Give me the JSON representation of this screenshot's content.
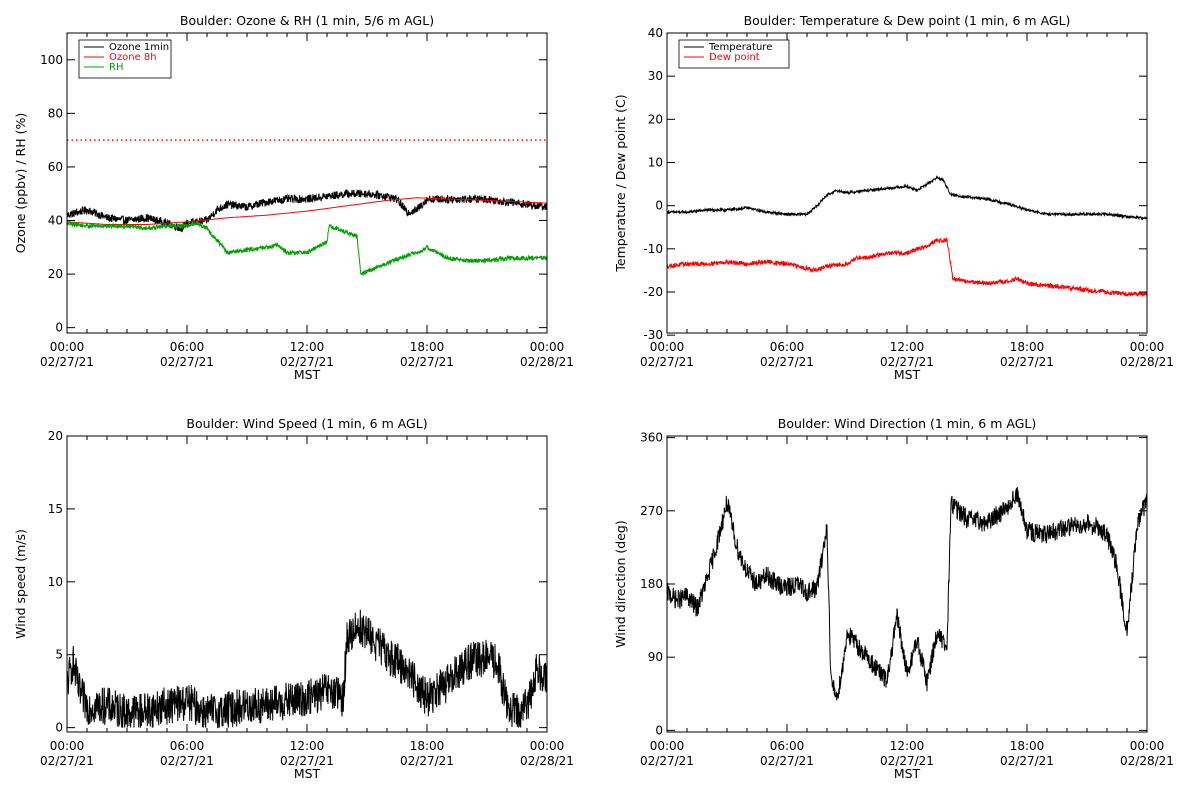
{
  "chart_data": [
    {
      "type": "line",
      "title": "Boulder: Ozone & RH (1 min, 5/6 m AGL)",
      "xlabel": "MST",
      "ylabel": "Ozone (ppbv) / RH (%)",
      "xlim": [
        0,
        24
      ],
      "ylim": [
        -2,
        110
      ],
      "yticks": [
        0,
        20,
        40,
        60,
        80,
        100
      ],
      "xticks_time": [
        "00:00",
        "06:00",
        "12:00",
        "18:00",
        "00:00"
      ],
      "xticks_date": [
        "02/27/21",
        "02/27/21",
        "02/27/21",
        "02/27/21",
        "02/28/21"
      ],
      "legend_position": "top-left",
      "reference_line": {
        "y": 70,
        "color": "#ff0000",
        "style": "dotted"
      },
      "series": [
        {
          "name": "Ozone 1min",
          "color": "#000000",
          "noise": 1.5,
          "x": [
            0,
            0.5,
            1,
            2,
            3,
            4,
            5,
            5.7,
            6,
            7,
            7.5,
            8,
            9,
            10,
            11,
            12,
            13,
            14,
            15,
            16,
            16.5,
            17,
            17.5,
            18,
            19,
            20,
            21,
            22,
            23,
            24
          ],
          "y": [
            42,
            43,
            44,
            41,
            40,
            41,
            39,
            37,
            39,
            40,
            44,
            46,
            45,
            47,
            48,
            48,
            49,
            50,
            50,
            49,
            48,
            43,
            44,
            48,
            48,
            48,
            48,
            47,
            46,
            45
          ]
        },
        {
          "name": "Ozone 8h",
          "color": "#ff0000",
          "noise": 0,
          "x": [
            0,
            2,
            4,
            6,
            8,
            10,
            12,
            14,
            16,
            17.5,
            19,
            21,
            24
          ],
          "y": [
            39.5,
            38.5,
            38.5,
            39.5,
            41,
            42,
            43.5,
            45.5,
            47.5,
            48.5,
            48,
            47.5,
            46.5
          ]
        },
        {
          "name": "RH",
          "color": "#00a000",
          "noise": 0.8,
          "x": [
            0,
            1,
            2,
            3,
            4,
            5,
            6,
            6.5,
            7,
            7.3,
            7.7,
            8,
            9,
            10,
            10.5,
            11,
            11.5,
            12,
            13,
            13.1,
            14.5,
            14.7,
            15,
            16,
            17,
            17.5,
            18,
            19,
            20,
            21,
            22,
            23,
            24
          ],
          "y": [
            39,
            38,
            38,
            38,
            37,
            38,
            38,
            39,
            37,
            34,
            31,
            28,
            29,
            30,
            31,
            28,
            28,
            28,
            32,
            38,
            34,
            20,
            21,
            24,
            27,
            28,
            30,
            26,
            25,
            25,
            26,
            26,
            26
          ]
        }
      ]
    },
    {
      "type": "line",
      "title": "Boulder: Temperature & Dew point (1 min, 6 m AGL)",
      "xlabel": "MST",
      "ylabel": "Temperature / Dew point (C)",
      "xlim": [
        0,
        24
      ],
      "ylim": [
        -29.5,
        40
      ],
      "yticks": [
        -30,
        -20,
        -10,
        0,
        10,
        20,
        30,
        40
      ],
      "xticks_time": [
        "00:00",
        "06:00",
        "12:00",
        "18:00",
        "00:00"
      ],
      "xticks_date": [
        "02/27/21",
        "02/27/21",
        "02/27/21",
        "02/27/21",
        "02/28/21"
      ],
      "legend_position": "top-left",
      "series": [
        {
          "name": "Temperature",
          "color": "#000000",
          "noise": 0.3,
          "x": [
            0,
            1,
            2,
            3,
            4,
            5,
            6,
            7,
            7.5,
            8,
            8.5,
            9,
            10,
            11,
            12,
            12.5,
            13,
            13.5,
            13.8,
            14.2,
            15,
            16,
            17,
            18,
            19,
            20,
            21,
            22,
            23,
            24
          ],
          "y": [
            -1.5,
            -1.5,
            -1,
            -1,
            -0.5,
            -1.5,
            -2,
            -2,
            0,
            2.5,
            3.5,
            3,
            3.5,
            4,
            4.5,
            3.5,
            5,
            6.5,
            6,
            2.5,
            2,
            1.5,
            0.5,
            -1,
            -2,
            -2,
            -2,
            -2,
            -2.5,
            -3
          ]
        },
        {
          "name": "Dew point",
          "color": "#ff0000",
          "noise": 0.5,
          "x": [
            0,
            1,
            2,
            3,
            4,
            5,
            6,
            6.5,
            7,
            7.5,
            8,
            9,
            9.5,
            10,
            11,
            12,
            12.5,
            13,
            13.5,
            14,
            14.3,
            15,
            16,
            17,
            17.5,
            18,
            19,
            20,
            21,
            22,
            23,
            24
          ],
          "y": [
            -14,
            -13.5,
            -13.5,
            -13,
            -13.5,
            -13,
            -13.5,
            -14,
            -14.5,
            -15,
            -14,
            -13.5,
            -12,
            -12,
            -11,
            -11,
            -10,
            -9.5,
            -8,
            -8,
            -17,
            -17.5,
            -18,
            -17.5,
            -17,
            -18,
            -18.5,
            -19,
            -19.5,
            -20,
            -20.5,
            -20.5
          ]
        }
      ]
    },
    {
      "type": "line",
      "title": "Boulder: Wind Speed (1 min, 6 m AGL)",
      "xlabel": "MST",
      "ylabel": "Wind speed (m/s)",
      "xlim": [
        0,
        24
      ],
      "ylim": [
        -0.3,
        20
      ],
      "yticks": [
        0,
        5,
        10,
        15,
        20
      ],
      "xticks_time": [
        "00:00",
        "06:00",
        "12:00",
        "18:00",
        "00:00"
      ],
      "xticks_date": [
        "02/27/21",
        "02/27/21",
        "02/27/21",
        "02/27/21",
        "02/28/21"
      ],
      "series": [
        {
          "name": "",
          "color": "#000000",
          "noise": 1.3,
          "clip_min": 0,
          "x": [
            0,
            0.3,
            0.6,
            1,
            2,
            3,
            4,
            5,
            6,
            7,
            8,
            9,
            10,
            11,
            12,
            13,
            13.8,
            14,
            14.5,
            15,
            16,
            17,
            18,
            19,
            20,
            21,
            21.5,
            22,
            22.5,
            23,
            23.5,
            24
          ],
          "y": [
            3,
            4.5,
            2.5,
            1.5,
            1.5,
            1,
            1.2,
            1.5,
            1.8,
            1,
            1.2,
            1.5,
            1.5,
            1.8,
            2,
            2.5,
            2,
            6,
            7,
            6.5,
            5,
            4,
            2,
            3,
            4.5,
            4.8,
            4.5,
            1.5,
            1,
            1.5,
            4,
            3.5
          ]
        }
      ]
    },
    {
      "type": "line",
      "title": "Boulder: Wind Direction (1 min, 6 m AGL)",
      "xlabel": "MST",
      "ylabel": "Wind direction (deg)",
      "xlim": [
        0,
        24
      ],
      "ylim": [
        -2,
        362
      ],
      "yticks": [
        0,
        90,
        180,
        270,
        360
      ],
      "xticks_time": [
        "00:00",
        "06:00",
        "12:00",
        "18:00",
        "00:00"
      ],
      "xticks_date": [
        "02/27/21",
        "02/27/21",
        "02/27/21",
        "02/27/21",
        "02/28/21"
      ],
      "series": [
        {
          "name": "",
          "color": "#000000",
          "noise": 12,
          "clip_min": 0,
          "clip_max": 360,
          "x": [
            0,
            0.5,
            1,
            1.5,
            2,
            2.5,
            3,
            3.5,
            4,
            4.5,
            5,
            5.5,
            6,
            6.5,
            7,
            7.5,
            8,
            8.2,
            8.5,
            8.8,
            9,
            10,
            11,
            11.5,
            12,
            12.5,
            13,
            13.5,
            14,
            14.2,
            15,
            16,
            17,
            17.5,
            18,
            19,
            20,
            21,
            21.5,
            22,
            22.5,
            23,
            23.5,
            24
          ],
          "y": [
            170,
            160,
            165,
            150,
            185,
            230,
            280,
            225,
            195,
            180,
            190,
            180,
            175,
            180,
            170,
            175,
            250,
            60,
            40,
            80,
            120,
            90,
            60,
            140,
            70,
            110,
            60,
            120,
            100,
            280,
            260,
            255,
            275,
            290,
            245,
            240,
            250,
            255,
            250,
            240,
            200,
            120,
            250,
            285
          ]
        }
      ]
    }
  ]
}
